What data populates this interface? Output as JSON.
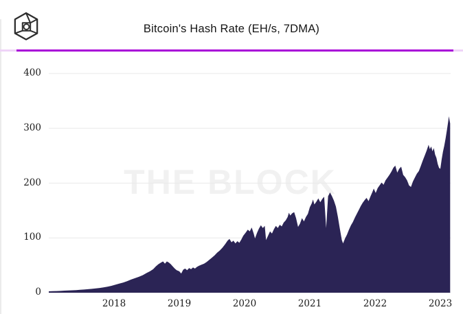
{
  "header": {
    "title": "Bitcoin's Hash Rate (EH/s, 7DMA)",
    "logo": "the-block-cube-logo",
    "accent_bar_color": "#a800d8",
    "accent_bar_track_color": "#efd3f8"
  },
  "watermark": "THE BLOCK",
  "chart_data": {
    "type": "area",
    "title": "Bitcoin's Hash Rate (EH/s, 7DMA)",
    "xlabel": "",
    "ylabel": "",
    "ylim": [
      0,
      400
    ],
    "xlim": [
      2017.0,
      2023.15
    ],
    "grid": true,
    "legend": "none",
    "y_ticks": [
      400,
      300,
      200,
      100,
      0
    ],
    "x_ticks": [
      2018,
      2019,
      2020,
      2021,
      2022,
      2023
    ],
    "fill_color": "#2b2455",
    "gridline_color": "#e9e9e9",
    "series": [
      {
        "name": "Bitcoin hash rate 7-day moving average (EH/s)",
        "points": [
          [
            2017.0,
            2.5
          ],
          [
            2017.06,
            2.8
          ],
          [
            2017.12,
            3
          ],
          [
            2017.18,
            3.3
          ],
          [
            2017.24,
            3.7
          ],
          [
            2017.3,
            4
          ],
          [
            2017.36,
            4.4
          ],
          [
            2017.42,
            4.8
          ],
          [
            2017.48,
            5.3
          ],
          [
            2017.54,
            5.8
          ],
          [
            2017.6,
            6.4
          ],
          [
            2017.66,
            7
          ],
          [
            2017.72,
            7.8
          ],
          [
            2017.78,
            8.6
          ],
          [
            2017.84,
            9.6
          ],
          [
            2017.9,
            11
          ],
          [
            2017.96,
            12.5
          ],
          [
            2018.02,
            14.5
          ],
          [
            2018.08,
            16.5
          ],
          [
            2018.14,
            18.5
          ],
          [
            2018.2,
            21
          ],
          [
            2018.26,
            24
          ],
          [
            2018.32,
            26.5
          ],
          [
            2018.38,
            29
          ],
          [
            2018.44,
            32
          ],
          [
            2018.5,
            36
          ],
          [
            2018.55,
            39
          ],
          [
            2018.6,
            43
          ],
          [
            2018.64,
            48
          ],
          [
            2018.68,
            52
          ],
          [
            2018.72,
            55
          ],
          [
            2018.75,
            57
          ],
          [
            2018.78,
            53
          ],
          [
            2018.81,
            57
          ],
          [
            2018.84,
            55
          ],
          [
            2018.87,
            52
          ],
          [
            2018.9,
            48
          ],
          [
            2018.93,
            44
          ],
          [
            2018.96,
            41
          ],
          [
            2019.0,
            39
          ],
          [
            2019.03,
            35
          ],
          [
            2019.06,
            42
          ],
          [
            2019.09,
            44
          ],
          [
            2019.12,
            41
          ],
          [
            2019.15,
            45
          ],
          [
            2019.18,
            43
          ],
          [
            2019.21,
            46
          ],
          [
            2019.24,
            44
          ],
          [
            2019.27,
            47
          ],
          [
            2019.3,
            49
          ],
          [
            2019.34,
            51
          ],
          [
            2019.38,
            53
          ],
          [
            2019.42,
            56
          ],
          [
            2019.46,
            60
          ],
          [
            2019.5,
            64
          ],
          [
            2019.54,
            68
          ],
          [
            2019.58,
            73
          ],
          [
            2019.62,
            77
          ],
          [
            2019.66,
            82
          ],
          [
            2019.7,
            88
          ],
          [
            2019.74,
            95
          ],
          [
            2019.77,
            98
          ],
          [
            2019.8,
            92
          ],
          [
            2019.83,
            95
          ],
          [
            2019.86,
            90
          ],
          [
            2019.89,
            94
          ],
          [
            2019.92,
            91
          ],
          [
            2019.95,
            97
          ],
          [
            2019.98,
            104
          ],
          [
            2020.02,
            110
          ],
          [
            2020.05,
            115
          ],
          [
            2020.08,
            112
          ],
          [
            2020.11,
            119
          ],
          [
            2020.14,
            108
          ],
          [
            2020.16,
            99
          ],
          [
            2020.19,
            109
          ],
          [
            2020.22,
            117
          ],
          [
            2020.25,
            123
          ],
          [
            2020.28,
            118
          ],
          [
            2020.31,
            122
          ],
          [
            2020.33,
            96
          ],
          [
            2020.36,
            104
          ],
          [
            2020.39,
            112
          ],
          [
            2020.42,
            108
          ],
          [
            2020.45,
            116
          ],
          [
            2020.48,
            122
          ],
          [
            2020.51,
            118
          ],
          [
            2020.54,
            124
          ],
          [
            2020.57,
            121
          ],
          [
            2020.6,
            128
          ],
          [
            2020.63,
            132
          ],
          [
            2020.66,
            138
          ],
          [
            2020.68,
            146
          ],
          [
            2020.7,
            141
          ],
          [
            2020.73,
            145
          ],
          [
            2020.76,
            147
          ],
          [
            2020.79,
            136
          ],
          [
            2020.82,
            120
          ],
          [
            2020.85,
            126
          ],
          [
            2020.88,
            136
          ],
          [
            2020.91,
            130
          ],
          [
            2020.94,
            138
          ],
          [
            2020.97,
            144
          ],
          [
            2021.0,
            156
          ],
          [
            2021.03,
            163
          ],
          [
            2021.05,
            170
          ],
          [
            2021.07,
            161
          ],
          [
            2021.1,
            166
          ],
          [
            2021.13,
            172
          ],
          [
            2021.16,
            165
          ],
          [
            2021.19,
            171
          ],
          [
            2021.22,
            175
          ],
          [
            2021.25,
            118
          ],
          [
            2021.28,
            176
          ],
          [
            2021.31,
            183
          ],
          [
            2021.34,
            176
          ],
          [
            2021.37,
            168
          ],
          [
            2021.4,
            157
          ],
          [
            2021.43,
            138
          ],
          [
            2021.46,
            117
          ],
          [
            2021.49,
            96
          ],
          [
            2021.51,
            90
          ],
          [
            2021.54,
            99
          ],
          [
            2021.57,
            106
          ],
          [
            2021.6,
            115
          ],
          [
            2021.63,
            123
          ],
          [
            2021.66,
            129
          ],
          [
            2021.69,
            137
          ],
          [
            2021.72,
            144
          ],
          [
            2021.75,
            151
          ],
          [
            2021.78,
            158
          ],
          [
            2021.81,
            164
          ],
          [
            2021.84,
            169
          ],
          [
            2021.87,
            173
          ],
          [
            2021.9,
            167
          ],
          [
            2021.93,
            176
          ],
          [
            2021.96,
            184
          ],
          [
            2021.98,
            190
          ],
          [
            2022.01,
            182
          ],
          [
            2022.04,
            191
          ],
          [
            2022.07,
            196
          ],
          [
            2022.1,
            201
          ],
          [
            2022.13,
            197
          ],
          [
            2022.16,
            205
          ],
          [
            2022.19,
            210
          ],
          [
            2022.22,
            215
          ],
          [
            2022.25,
            221
          ],
          [
            2022.28,
            228
          ],
          [
            2022.31,
            232
          ],
          [
            2022.34,
            219
          ],
          [
            2022.37,
            226
          ],
          [
            2022.4,
            230
          ],
          [
            2022.43,
            215
          ],
          [
            2022.46,
            211
          ],
          [
            2022.49,
            205
          ],
          [
            2022.52,
            196
          ],
          [
            2022.55,
            193
          ],
          [
            2022.58,
            203
          ],
          [
            2022.61,
            210
          ],
          [
            2022.64,
            217
          ],
          [
            2022.67,
            222
          ],
          [
            2022.7,
            231
          ],
          [
            2022.73,
            241
          ],
          [
            2022.76,
            250
          ],
          [
            2022.79,
            259
          ],
          [
            2022.82,
            270
          ],
          [
            2022.84,
            262
          ],
          [
            2022.86,
            267
          ],
          [
            2022.88,
            258
          ],
          [
            2022.9,
            264
          ],
          [
            2022.92,
            252
          ],
          [
            2022.94,
            246
          ],
          [
            2022.96,
            235
          ],
          [
            2022.98,
            228
          ],
          [
            2023.0,
            226
          ],
          [
            2023.02,
            243
          ],
          [
            2023.04,
            257
          ],
          [
            2023.06,
            268
          ],
          [
            2023.08,
            281
          ],
          [
            2023.1,
            296
          ],
          [
            2023.12,
            312
          ],
          [
            2023.13,
            322
          ],
          [
            2023.15,
            309
          ]
        ]
      }
    ]
  }
}
